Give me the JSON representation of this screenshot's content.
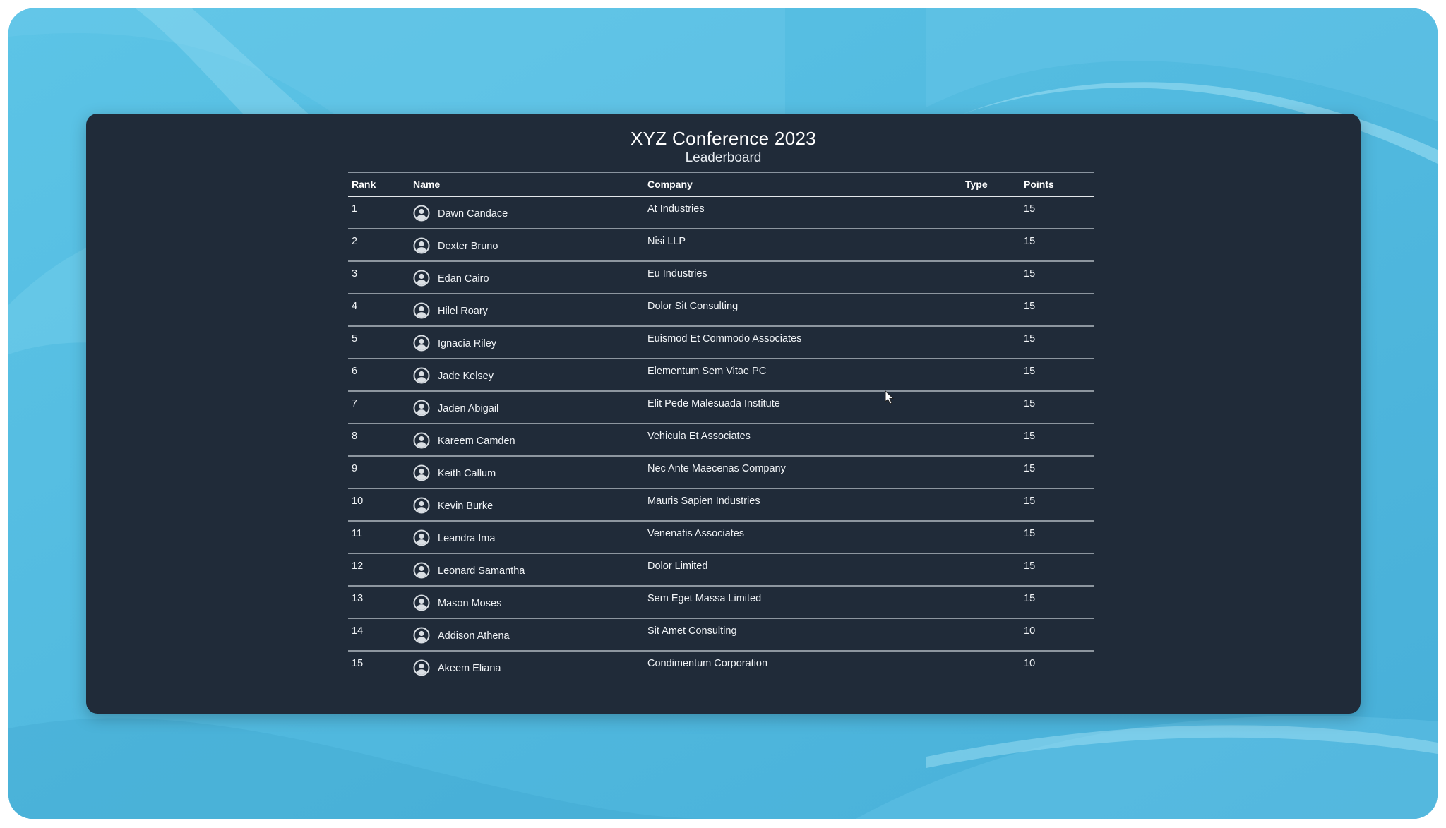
{
  "header": {
    "title": "XYZ Conference 2023",
    "subtitle": "Leaderboard"
  },
  "table": {
    "columns": {
      "rank": "Rank",
      "name": "Name",
      "company": "Company",
      "type": "Type",
      "points": "Points"
    },
    "rows": [
      {
        "rank": "1",
        "name": "Dawn Candace",
        "company": "At Industries",
        "type": "",
        "points": "15"
      },
      {
        "rank": "2",
        "name": "Dexter Bruno",
        "company": "Nisi LLP",
        "type": "",
        "points": "15"
      },
      {
        "rank": "3",
        "name": "Edan Cairo",
        "company": "Eu Industries",
        "type": "",
        "points": "15"
      },
      {
        "rank": "4",
        "name": "Hilel Roary",
        "company": "Dolor Sit Consulting",
        "type": "",
        "points": "15"
      },
      {
        "rank": "5",
        "name": "Ignacia Riley",
        "company": "Euismod Et Commodo Associates",
        "type": "",
        "points": "15"
      },
      {
        "rank": "6",
        "name": "Jade Kelsey",
        "company": "Elementum Sem Vitae PC",
        "type": "",
        "points": "15"
      },
      {
        "rank": "7",
        "name": "Jaden Abigail",
        "company": "Elit Pede Malesuada Institute",
        "type": "",
        "points": "15"
      },
      {
        "rank": "8",
        "name": "Kareem Camden",
        "company": "Vehicula Et Associates",
        "type": "",
        "points": "15"
      },
      {
        "rank": "9",
        "name": "Keith Callum",
        "company": "Nec Ante Maecenas Company",
        "type": "",
        "points": "15"
      },
      {
        "rank": "10",
        "name": "Kevin Burke",
        "company": "Mauris Sapien Industries",
        "type": "",
        "points": "15"
      },
      {
        "rank": "11",
        "name": "Leandra Ima",
        "company": "Venenatis Associates",
        "type": "",
        "points": "15"
      },
      {
        "rank": "12",
        "name": "Leonard Samantha",
        "company": "Dolor Limited",
        "type": "",
        "points": "15"
      },
      {
        "rank": "13",
        "name": "Mason Moses",
        "company": "Sem Eget Massa Limited",
        "type": "",
        "points": "15"
      },
      {
        "rank": "14",
        "name": "Addison Athena",
        "company": "Sit Amet Consulting",
        "type": "",
        "points": "10"
      },
      {
        "rank": "15",
        "name": "Akeem Eliana",
        "company": "Condimentum Corporation",
        "type": "",
        "points": "10"
      }
    ]
  },
  "icons": {
    "avatar": "user-circle-icon",
    "cursor": "mouse-pointer-icon"
  },
  "colors": {
    "background": "#4fb7dd",
    "panel": "#202b39",
    "text": "#ffffff",
    "divider": "#8d969f"
  }
}
